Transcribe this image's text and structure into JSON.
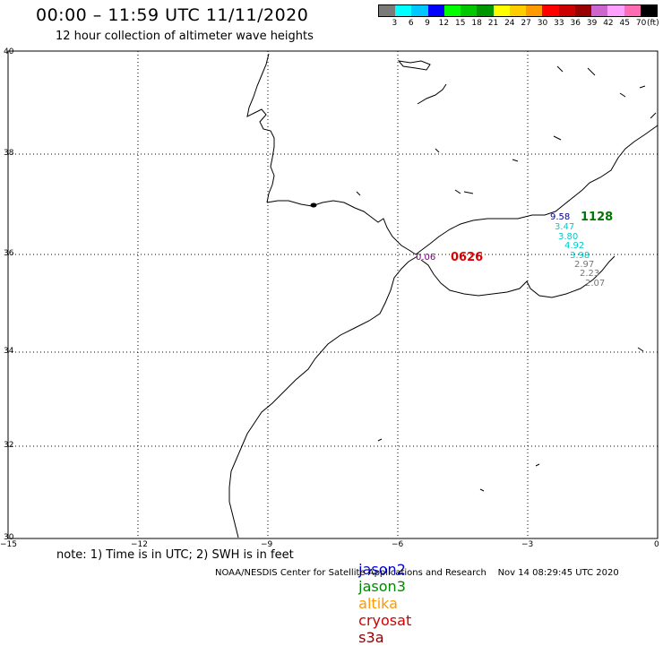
{
  "header": {
    "title": "00:00 – 11:59 UTC 11/11/2020",
    "subtitle": "12 hour collection of altimeter wave heights"
  },
  "scale": {
    "values": [
      "3",
      "6",
      "9",
      "12",
      "15",
      "18",
      "21",
      "24",
      "27",
      "30",
      "33",
      "36",
      "39",
      "42",
      "45",
      "70",
      "(ft)"
    ],
    "colors": [
      "#7a7a7a",
      "#00ffff",
      "#00c8ff",
      "#0000ff",
      "#00ff00",
      "#00c800",
      "#009600",
      "#ffff00",
      "#ffcc00",
      "#ff9900",
      "#ff0000",
      "#cc0000",
      "#990000",
      "#cc66cc",
      "#ffa0ff",
      "#ff6cb4",
      "#000000"
    ]
  },
  "axes": {
    "lat_labels": [
      "40",
      "38",
      "36",
      "34",
      "32",
      "30"
    ],
    "lon_labels": [
      "−15",
      "−12",
      "−9",
      "−6",
      "−3",
      "0"
    ]
  },
  "tracks": [
    {
      "id": "cryosat-time",
      "text": "0626",
      "color": "#dd0000"
    },
    {
      "id": "cryosat-swh",
      "text": "0.06",
      "color": "#800080"
    },
    {
      "id": "jason3-time",
      "text": "1128",
      "color": "#007700"
    },
    {
      "id": "swh-1",
      "text": "9.58",
      "color": "#000090"
    },
    {
      "id": "swh-2",
      "text": "3.47",
      "color": "#00cccc"
    },
    {
      "id": "swh-3",
      "text": "3.80",
      "color": "#00cccc"
    },
    {
      "id": "swh-4",
      "text": "4.92",
      "color": "#00cccc"
    },
    {
      "id": "swh-5",
      "text": "3.98",
      "color": "#00cccc"
    },
    {
      "id": "swh-6",
      "text": "2.97",
      "color": "#777777"
    },
    {
      "id": "swh-7",
      "text": "2.23",
      "color": "#777777"
    },
    {
      "id": "swh-8",
      "text": "2.07",
      "color": "#777777"
    }
  ],
  "footer": {
    "note": "note: 1) Time is in UTC; 2) SWH is in feet",
    "legend": [
      {
        "label": "jason2",
        "color": "#0000cc"
      },
      {
        "label": "jason3",
        "color": "#008800"
      },
      {
        "label": "altika",
        "color": "#ff9900"
      },
      {
        "label": "cryosat",
        "color": "#cc0000"
      },
      {
        "label": "s3a",
        "color": "#880000"
      }
    ],
    "credit": "NOAA/NESDIS Center for Satellite Applications and Research    Nov 14 08:29:45 UTC 2020"
  }
}
